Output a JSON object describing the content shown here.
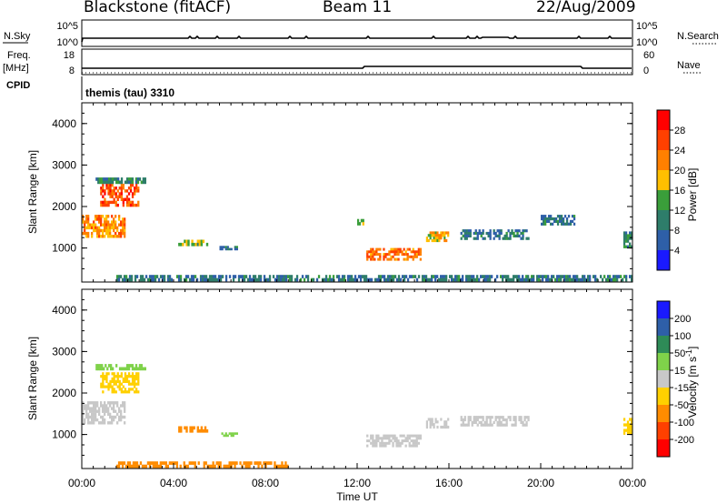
{
  "header": {
    "title": "Blackstone (fitACF)",
    "beam": "Beam 11",
    "date": "22/Aug/2009"
  },
  "strips": {
    "nsky": {
      "label": "N.Sky",
      "ticks": [
        "10^5",
        "10^0"
      ],
      "right_label": "N.Search",
      "right_ticks": [
        "10^5",
        "10^0"
      ]
    },
    "freq": {
      "label_line1": "Freq.",
      "label_line2": "[MHz]",
      "ticks": [
        "18",
        "8"
      ],
      "right_label": "Nave",
      "right_ticks": [
        "60",
        "0"
      ]
    },
    "cpid": {
      "label": "CPID",
      "program": "themis (tau) 3310"
    }
  },
  "panels": {
    "power": {
      "ylabel": "Slant Range [km]",
      "yticks": [
        "4000",
        "3000",
        "2000",
        "1000"
      ]
    },
    "velocity": {
      "ylabel": "Slant Range [km]",
      "yticks": [
        "4000",
        "3000",
        "2000",
        "1000"
      ]
    }
  },
  "colorbars": {
    "power": {
      "label": "Power [dB]",
      "ticks": [
        "28",
        "24",
        "20",
        "16",
        "12",
        "8",
        "4"
      ],
      "colors": [
        "#ff0000",
        "#ff4000",
        "#ff8000",
        "#ffbf00",
        "#3a9e3a",
        "#2e7d6a",
        "#2e5fa8",
        "#1a1aff"
      ]
    },
    "velocity": {
      "label": "Velocity [m s",
      "label_sup": "-1",
      "label_end": "]",
      "ticks": [
        "200",
        "100",
        "50",
        "15",
        "-15",
        "-50",
        "-100",
        "-200"
      ],
      "colors": [
        "#1a1aff",
        "#2e5fa8",
        "#2e8b57",
        "#7fd24a",
        "#c8c8c8",
        "#ffd000",
        "#ff8c00",
        "#ff4000",
        "#ff0000"
      ]
    }
  },
  "xaxis": {
    "label": "Time UT",
    "ticks": [
      "00:00",
      "04:00",
      "08:00",
      "12:00",
      "16:00",
      "20:00",
      "00:00"
    ]
  },
  "chart_data": [
    {
      "type": "heatmap",
      "title": "Power",
      "xlabel": "",
      "ylabel": "Slant Range [km]",
      "xlim": [
        0,
        24
      ],
      "ylim": [
        180,
        4500
      ],
      "color_scale": [
        0,
        30
      ],
      "regions": [
        {
          "t": [
            0.0,
            1.9
          ],
          "r": [
            1250,
            1800
          ],
          "value": 20
        },
        {
          "t": [
            0.8,
            2.5
          ],
          "r": [
            2000,
            2550
          ],
          "value": 24
        },
        {
          "t": [
            0.6,
            2.8
          ],
          "r": [
            2550,
            2700
          ],
          "value": 10
        },
        {
          "t": [
            4.2,
            5.5
          ],
          "r": [
            1050,
            1200
          ],
          "value": 14
        },
        {
          "t": [
            6.0,
            6.8
          ],
          "r": [
            950,
            1050
          ],
          "value": 8
        },
        {
          "t": [
            12.4,
            14.8
          ],
          "r": [
            700,
            1000
          ],
          "value": 22
        },
        {
          "t": [
            12.0,
            12.3
          ],
          "r": [
            1550,
            1700
          ],
          "value": 14
        },
        {
          "t": [
            15.0,
            16.0
          ],
          "r": [
            1150,
            1400
          ],
          "value": 18
        },
        {
          "t": [
            16.5,
            19.5
          ],
          "r": [
            1200,
            1450
          ],
          "value": 8
        },
        {
          "t": [
            20.0,
            21.5
          ],
          "r": [
            1550,
            1800
          ],
          "value": 8
        },
        {
          "t": [
            1.5,
            24.0
          ],
          "r": [
            200,
            350
          ],
          "value": 8
        },
        {
          "t": [
            23.6,
            24.0
          ],
          "r": [
            1000,
            1400
          ],
          "value": 10
        }
      ]
    },
    {
      "type": "heatmap",
      "title": "Velocity",
      "xlabel": "Time UT",
      "ylabel": "Slant Range [km]",
      "xlim": [
        0,
        24
      ],
      "ylim": [
        180,
        4500
      ],
      "color_scale": [
        -250,
        250
      ],
      "regions": [
        {
          "t": [
            0.0,
            1.9
          ],
          "r": [
            1250,
            1800
          ],
          "value": 0
        },
        {
          "t": [
            0.8,
            2.5
          ],
          "r": [
            2000,
            2500
          ],
          "value": -40
        },
        {
          "t": [
            0.6,
            2.8
          ],
          "r": [
            2550,
            2700
          ],
          "value": 30
        },
        {
          "t": [
            4.2,
            5.5
          ],
          "r": [
            1050,
            1200
          ],
          "value": -60
        },
        {
          "t": [
            6.0,
            6.8
          ],
          "r": [
            950,
            1050
          ],
          "value": 30
        },
        {
          "t": [
            12.4,
            14.8
          ],
          "r": [
            700,
            1000
          ],
          "value": 0
        },
        {
          "t": [
            15.0,
            16.0
          ],
          "r": [
            1150,
            1400
          ],
          "value": 0
        },
        {
          "t": [
            16.5,
            19.5
          ],
          "r": [
            1200,
            1450
          ],
          "value": 0
        },
        {
          "t": [
            1.5,
            9.0
          ],
          "r": [
            200,
            350
          ],
          "value": -60
        },
        {
          "t": [
            23.6,
            24.0
          ],
          "r": [
            1000,
            1400
          ],
          "value": -40
        }
      ]
    }
  ]
}
